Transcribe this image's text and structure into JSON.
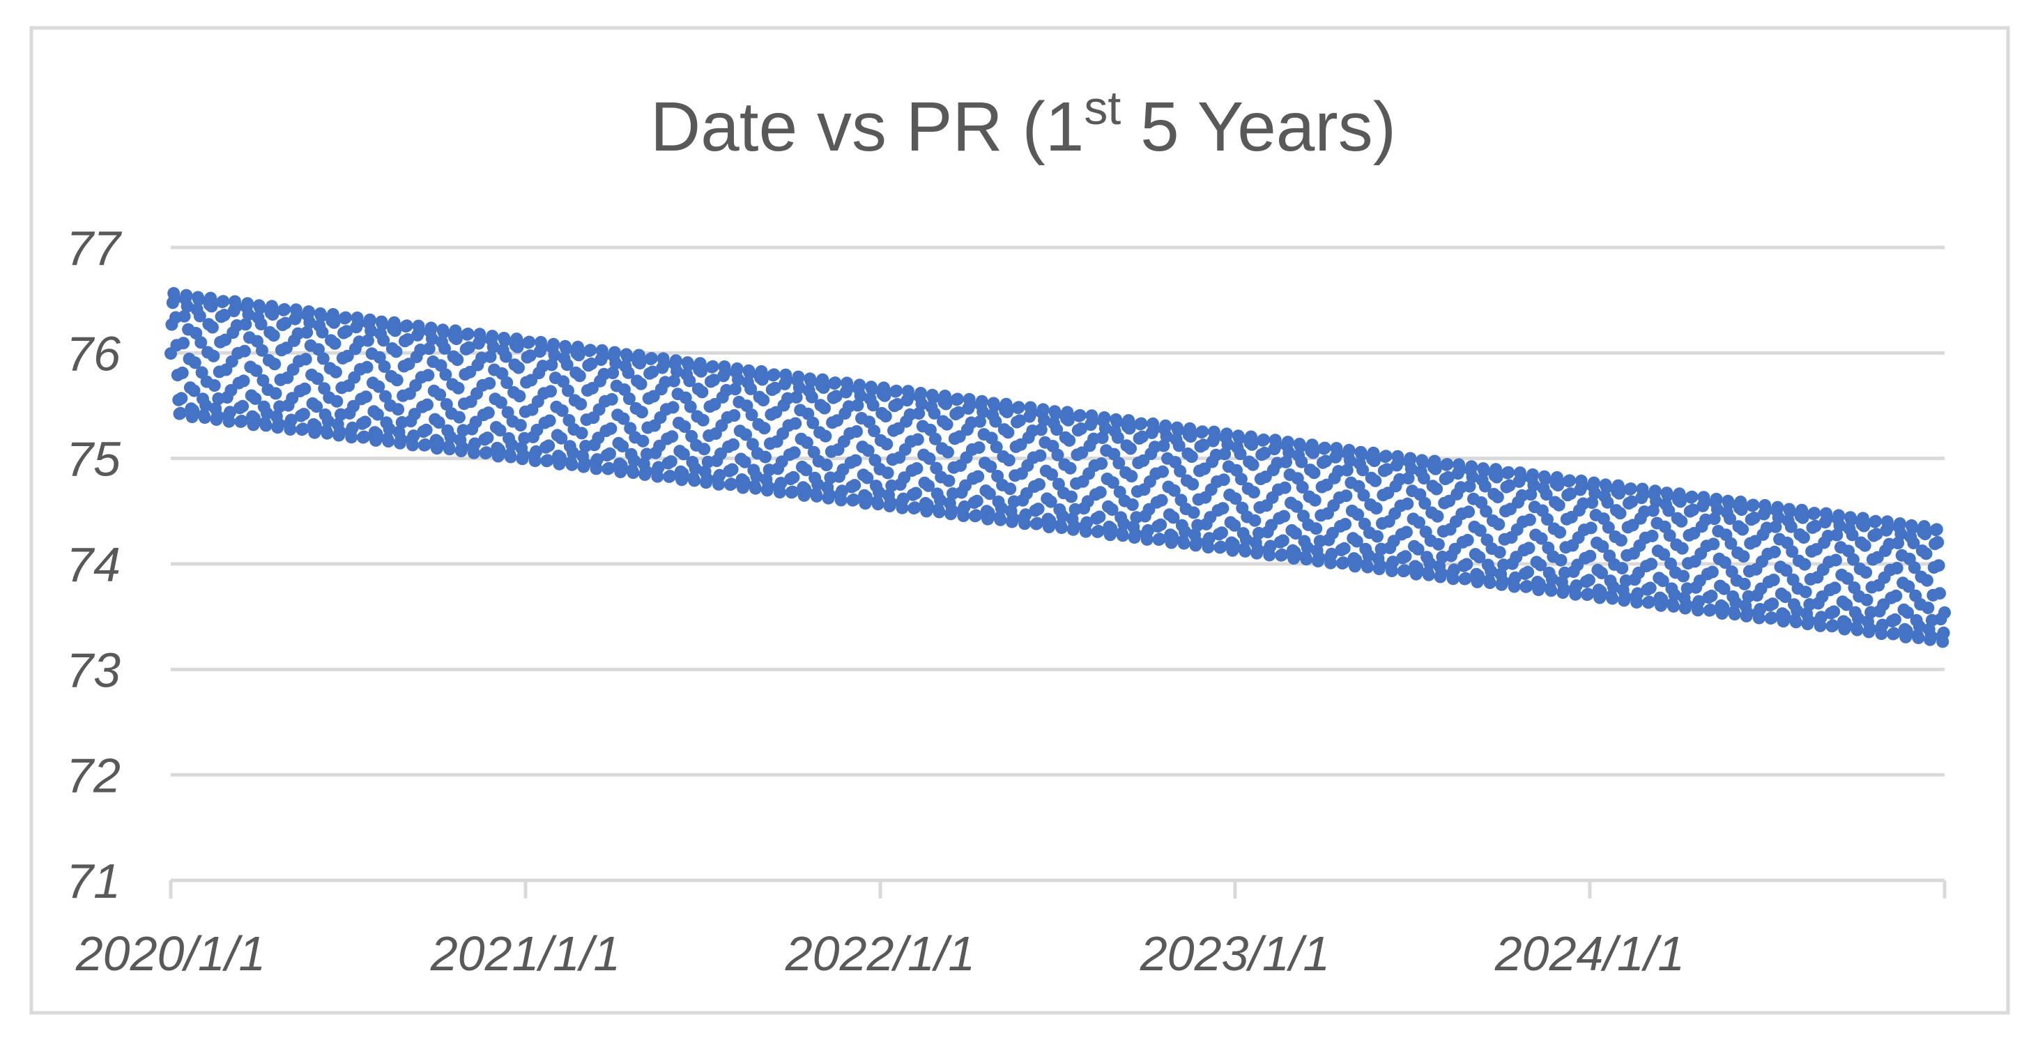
{
  "chart_data": {
    "type": "scatter",
    "title": {
      "prefix": "Date vs PR (1",
      "superscript": "st",
      "suffix": " 5 Years)",
      "full_text": "Date vs PR (1st 5 Years)"
    },
    "x_axis": {
      "tick_labels": [
        "2020/1/1",
        "2021/1/1",
        "2022/1/1",
        "2023/1/1",
        "2024/1/1"
      ],
      "n_divisions": 5,
      "range_start": "2020/1/1",
      "range_end": "2025/1/1",
      "gridlines": false
    },
    "y_axis": {
      "tick_labels": [
        "71",
        "72",
        "73",
        "74",
        "75",
        "76",
        "77"
      ],
      "min": 71,
      "max": 77,
      "tick_step": 1,
      "gridlines": true
    },
    "series": [
      {
        "name": "PR",
        "marker_color": "#4472C4",
        "marker_shape": "circle",
        "sampling": "daily",
        "n_points": 1827,
        "oscillation_period_days": 12.6,
        "band": {
          "description": "solid band of overlapping round markers declining linearly, short-period oscillation fills band between envelopes",
          "top_start": 76.63,
          "top_end": 74.39,
          "bottom_start": 75.36,
          "bottom_end": 73.2
        },
        "envelope_samples": {
          "dates": [
            "2020/1/1",
            "2021/1/1",
            "2022/1/1",
            "2023/1/1",
            "2024/1/1",
            "2024/12/31"
          ],
          "top": [
            76.63,
            76.18,
            75.73,
            75.28,
            74.84,
            74.39
          ],
          "bottom": [
            75.36,
            74.93,
            74.5,
            74.06,
            73.63,
            73.2
          ]
        }
      }
    ],
    "legend": "none",
    "colors": {
      "series_fill": "#4472C4",
      "gridline": "#D9D9D9",
      "axis_line": "#D9D9D9",
      "chart_border": "#D9D9D9",
      "tick_text": "#595959",
      "title_text": "#595959",
      "background": "#FFFFFF"
    }
  }
}
